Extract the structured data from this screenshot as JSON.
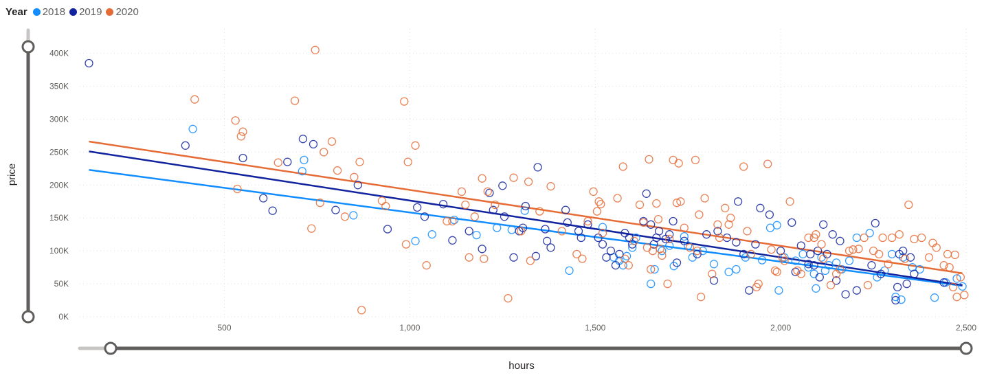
{
  "legend": {
    "title": "Year",
    "items": [
      {
        "label": "2018",
        "color": "#118DFF"
      },
      {
        "label": "2019",
        "color": "#12239E"
      },
      {
        "label": "2020",
        "color": "#E66C37"
      }
    ]
  },
  "chart_data": {
    "type": "scatter",
    "title": "",
    "xlabel": "hours",
    "ylabel": "price",
    "xlim": [
      110,
      2500
    ],
    "ylim": [
      0,
      410000
    ],
    "x_ticks": [
      500,
      1000,
      1500,
      2000,
      2500
    ],
    "x_tick_labels": [
      "500",
      "1,000",
      "1,500",
      "2,000",
      "2,500"
    ],
    "y_ticks": [
      0,
      50000,
      100000,
      150000,
      200000,
      250000,
      300000,
      350000,
      400000
    ],
    "y_tick_labels": [
      "0K",
      "50K",
      "100K",
      "150K",
      "200K",
      "250K",
      "300K",
      "350K",
      "400K"
    ],
    "grid": true,
    "legend_position": "top-left",
    "marker": "hollow-circle",
    "series": [
      {
        "name": "2018",
        "color": "#118DFF",
        "trend": [
          [
            135,
            223000
          ],
          [
            2490,
            47000
          ]
        ],
        "points": [
          [
            415,
            285000
          ],
          [
            715,
            238000
          ],
          [
            710,
            221000
          ],
          [
            848,
            154000
          ],
          [
            1015,
            115000
          ],
          [
            1060,
            125000
          ],
          [
            1120,
            147000
          ],
          [
            1180,
            124000
          ],
          [
            1235,
            135000
          ],
          [
            1275,
            132000
          ],
          [
            1310,
            161000
          ],
          [
            1430,
            70000
          ],
          [
            1520,
            136000
          ],
          [
            1550,
            90000
          ],
          [
            1565,
            85000
          ],
          [
            1575,
            78000
          ],
          [
            1585,
            92000
          ],
          [
            1600,
            105000
          ],
          [
            1610,
            120000
          ],
          [
            1650,
            50000
          ],
          [
            1660,
            72000
          ],
          [
            1680,
            100000
          ],
          [
            1700,
            108000
          ],
          [
            1712,
            77000
          ],
          [
            1740,
            122000
          ],
          [
            1750,
            108000
          ],
          [
            1762,
            90000
          ],
          [
            1790,
            100000
          ],
          [
            1820,
            80000
          ],
          [
            1860,
            68000
          ],
          [
            1880,
            72000
          ],
          [
            1905,
            90000
          ],
          [
            1950,
            86000
          ],
          [
            1972,
            135000
          ],
          [
            1990,
            139000
          ],
          [
            1995,
            40000
          ],
          [
            2010,
            90000
          ],
          [
            2040,
            85000
          ],
          [
            2060,
            95000
          ],
          [
            2075,
            75000
          ],
          [
            2090,
            65000
          ],
          [
            2095,
            43000
          ],
          [
            2110,
            90000
          ],
          [
            2120,
            70000
          ],
          [
            2130,
            78000
          ],
          [
            2150,
            82000
          ],
          [
            2165,
            72000
          ],
          [
            2185,
            85000
          ],
          [
            2205,
            120000
          ],
          [
            2240,
            127000
          ],
          [
            2260,
            60000
          ],
          [
            2280,
            70000
          ],
          [
            2300,
            95000
          ],
          [
            2310,
            30000
          ],
          [
            2325,
            26000
          ],
          [
            2330,
            90000
          ],
          [
            2355,
            75000
          ],
          [
            2375,
            72000
          ],
          [
            2415,
            29000
          ],
          [
            2445,
            52000
          ],
          [
            2475,
            58000
          ],
          [
            2490,
            46000
          ]
        ]
      },
      {
        "name": "2019",
        "color": "#12239E",
        "trend": [
          [
            135,
            251000
          ],
          [
            2490,
            48000
          ]
        ],
        "points": [
          [
            135,
            385000
          ],
          [
            395,
            260000
          ],
          [
            550,
            241000
          ],
          [
            605,
            180000
          ],
          [
            630,
            161000
          ],
          [
            670,
            235000
          ],
          [
            712,
            270000
          ],
          [
            740,
            262000
          ],
          [
            800,
            162000
          ],
          [
            860,
            200000
          ],
          [
            940,
            133000
          ],
          [
            1020,
            166000
          ],
          [
            1040,
            152000
          ],
          [
            1090,
            171000
          ],
          [
            1115,
            116000
          ],
          [
            1160,
            130000
          ],
          [
            1195,
            103000
          ],
          [
            1215,
            188000
          ],
          [
            1225,
            162000
          ],
          [
            1250,
            199000
          ],
          [
            1255,
            152000
          ],
          [
            1280,
            90000
          ],
          [
            1295,
            130000
          ],
          [
            1305,
            135000
          ],
          [
            1312,
            168000
          ],
          [
            1340,
            92000
          ],
          [
            1345,
            227000
          ],
          [
            1365,
            133000
          ],
          [
            1370,
            115000
          ],
          [
            1380,
            105000
          ],
          [
            1420,
            162000
          ],
          [
            1425,
            143000
          ],
          [
            1455,
            130000
          ],
          [
            1462,
            120000
          ],
          [
            1480,
            140000
          ],
          [
            1508,
            120000
          ],
          [
            1520,
            110000
          ],
          [
            1530,
            90000
          ],
          [
            1542,
            100000
          ],
          [
            1555,
            78000
          ],
          [
            1565,
            95000
          ],
          [
            1580,
            127000
          ],
          [
            1592,
            120000
          ],
          [
            1600,
            110000
          ],
          [
            1630,
            145000
          ],
          [
            1638,
            187000
          ],
          [
            1650,
            140000
          ],
          [
            1658,
            110000
          ],
          [
            1665,
            120000
          ],
          [
            1672,
            130000
          ],
          [
            1690,
            118000
          ],
          [
            1700,
            125000
          ],
          [
            1710,
            145000
          ],
          [
            1720,
            82000
          ],
          [
            1740,
            115000
          ],
          [
            1775,
            95000
          ],
          [
            1800,
            125000
          ],
          [
            1820,
            55000
          ],
          [
            1830,
            130000
          ],
          [
            1855,
            120000
          ],
          [
            1880,
            113000
          ],
          [
            1885,
            175000
          ],
          [
            1900,
            95000
          ],
          [
            1915,
            40000
          ],
          [
            1932,
            110000
          ],
          [
            1945,
            165000
          ],
          [
            1970,
            155000
          ],
          [
            2000,
            100000
          ],
          [
            2030,
            143000
          ],
          [
            2040,
            68000
          ],
          [
            2055,
            108000
          ],
          [
            2075,
            80000
          ],
          [
            2080,
            95000
          ],
          [
            2090,
            78000
          ],
          [
            2100,
            100000
          ],
          [
            2105,
            60000
          ],
          [
            2115,
            140000
          ],
          [
            2125,
            95000
          ],
          [
            2140,
            125000
          ],
          [
            2150,
            55000
          ],
          [
            2160,
            115000
          ],
          [
            2175,
            34000
          ],
          [
            2205,
            40000
          ],
          [
            2245,
            78000
          ],
          [
            2255,
            142000
          ],
          [
            2270,
            65000
          ],
          [
            2310,
            25000
          ],
          [
            2315,
            45000
          ],
          [
            2320,
            95000
          ],
          [
            2330,
            100000
          ],
          [
            2340,
            50000
          ],
          [
            2350,
            90000
          ],
          [
            2360,
            65000
          ],
          [
            2440,
            52000
          ]
        ]
      },
      {
        "name": "2020",
        "color": "#E66C37",
        "trend": [
          [
            135,
            266000
          ],
          [
            2490,
            66000
          ]
        ],
        "points": [
          [
            420,
            330000
          ],
          [
            530,
            298000
          ],
          [
            535,
            194000
          ],
          [
            545,
            274000
          ],
          [
            550,
            281000
          ],
          [
            645,
            234000
          ],
          [
            690,
            328000
          ],
          [
            735,
            134000
          ],
          [
            745,
            405000
          ],
          [
            758,
            173000
          ],
          [
            768,
            250000
          ],
          [
            790,
            266000
          ],
          [
            805,
            222000
          ],
          [
            825,
            152000
          ],
          [
            850,
            212000
          ],
          [
            865,
            235000
          ],
          [
            870,
            10000
          ],
          [
            925,
            176000
          ],
          [
            935,
            168000
          ],
          [
            985,
            327000
          ],
          [
            990,
            110000
          ],
          [
            995,
            235000
          ],
          [
            1015,
            260000
          ],
          [
            1045,
            78000
          ],
          [
            1100,
            145000
          ],
          [
            1115,
            145000
          ],
          [
            1140,
            190000
          ],
          [
            1150,
            170000
          ],
          [
            1160,
            90000
          ],
          [
            1175,
            152000
          ],
          [
            1195,
            210000
          ],
          [
            1200,
            88000
          ],
          [
            1210,
            190000
          ],
          [
            1230,
            170000
          ],
          [
            1265,
            28000
          ],
          [
            1280,
            211000
          ],
          [
            1300,
            130000
          ],
          [
            1320,
            205000
          ],
          [
            1325,
            85000
          ],
          [
            1350,
            160000
          ],
          [
            1380,
            198000
          ],
          [
            1410,
            130000
          ],
          [
            1450,
            95000
          ],
          [
            1465,
            88000
          ],
          [
            1480,
            145000
          ],
          [
            1495,
            190000
          ],
          [
            1505,
            160000
          ],
          [
            1510,
            175000
          ],
          [
            1515,
            171000
          ],
          [
            1520,
            127000
          ],
          [
            1560,
            180000
          ],
          [
            1575,
            228000
          ],
          [
            1580,
            88000
          ],
          [
            1590,
            78000
          ],
          [
            1605,
            115000
          ],
          [
            1620,
            170000
          ],
          [
            1630,
            143000
          ],
          [
            1640,
            105000
          ],
          [
            1645,
            239000
          ],
          [
            1650,
            72000
          ],
          [
            1655,
            100000
          ],
          [
            1665,
            172000
          ],
          [
            1670,
            148000
          ],
          [
            1675,
            103000
          ],
          [
            1680,
            93000
          ],
          [
            1695,
            50000
          ],
          [
            1700,
            118000
          ],
          [
            1710,
            238000
          ],
          [
            1720,
            173000
          ],
          [
            1725,
            233000
          ],
          [
            1730,
            175000
          ],
          [
            1740,
            135000
          ],
          [
            1755,
            105000
          ],
          [
            1770,
            238000
          ],
          [
            1775,
            100000
          ],
          [
            1780,
            155000
          ],
          [
            1785,
            30000
          ],
          [
            1795,
            180000
          ],
          [
            1815,
            65000
          ],
          [
            1830,
            140000
          ],
          [
            1835,
            120000
          ],
          [
            1850,
            165000
          ],
          [
            1860,
            140000
          ],
          [
            1865,
            150000
          ],
          [
            1900,
            228000
          ],
          [
            1910,
            130000
          ],
          [
            1920,
            95000
          ],
          [
            1935,
            45000
          ],
          [
            1940,
            50000
          ],
          [
            1965,
            232000
          ],
          [
            1975,
            102000
          ],
          [
            1985,
            70000
          ],
          [
            1990,
            68000
          ],
          [
            2005,
            90000
          ],
          [
            2010,
            85000
          ],
          [
            2025,
            175000
          ],
          [
            2045,
            70000
          ],
          [
            2055,
            65000
          ],
          [
            2075,
            120000
          ],
          [
            2090,
            120000
          ],
          [
            2095,
            125000
          ],
          [
            2110,
            110000
          ],
          [
            2115,
            88000
          ],
          [
            2135,
            48000
          ],
          [
            2150,
            65000
          ],
          [
            2160,
            72000
          ],
          [
            2185,
            100000
          ],
          [
            2195,
            102000
          ],
          [
            2210,
            103000
          ],
          [
            2225,
            120000
          ],
          [
            2235,
            48000
          ],
          [
            2250,
            100000
          ],
          [
            2265,
            95000
          ],
          [
            2275,
            120000
          ],
          [
            2290,
            80000
          ],
          [
            2300,
            120000
          ],
          [
            2320,
            125000
          ],
          [
            2335,
            88000
          ],
          [
            2345,
            170000
          ],
          [
            2360,
            118000
          ],
          [
            2380,
            120000
          ],
          [
            2400,
            90000
          ],
          [
            2410,
            112000
          ],
          [
            2420,
            105000
          ],
          [
            2440,
            78000
          ],
          [
            2450,
            95000
          ],
          [
            2455,
            75000
          ],
          [
            2465,
            45000
          ],
          [
            2475,
            30000
          ],
          [
            2485,
            60000
          ],
          [
            2495,
            33000
          ],
          [
            2470,
            94000
          ]
        ]
      }
    ]
  }
}
